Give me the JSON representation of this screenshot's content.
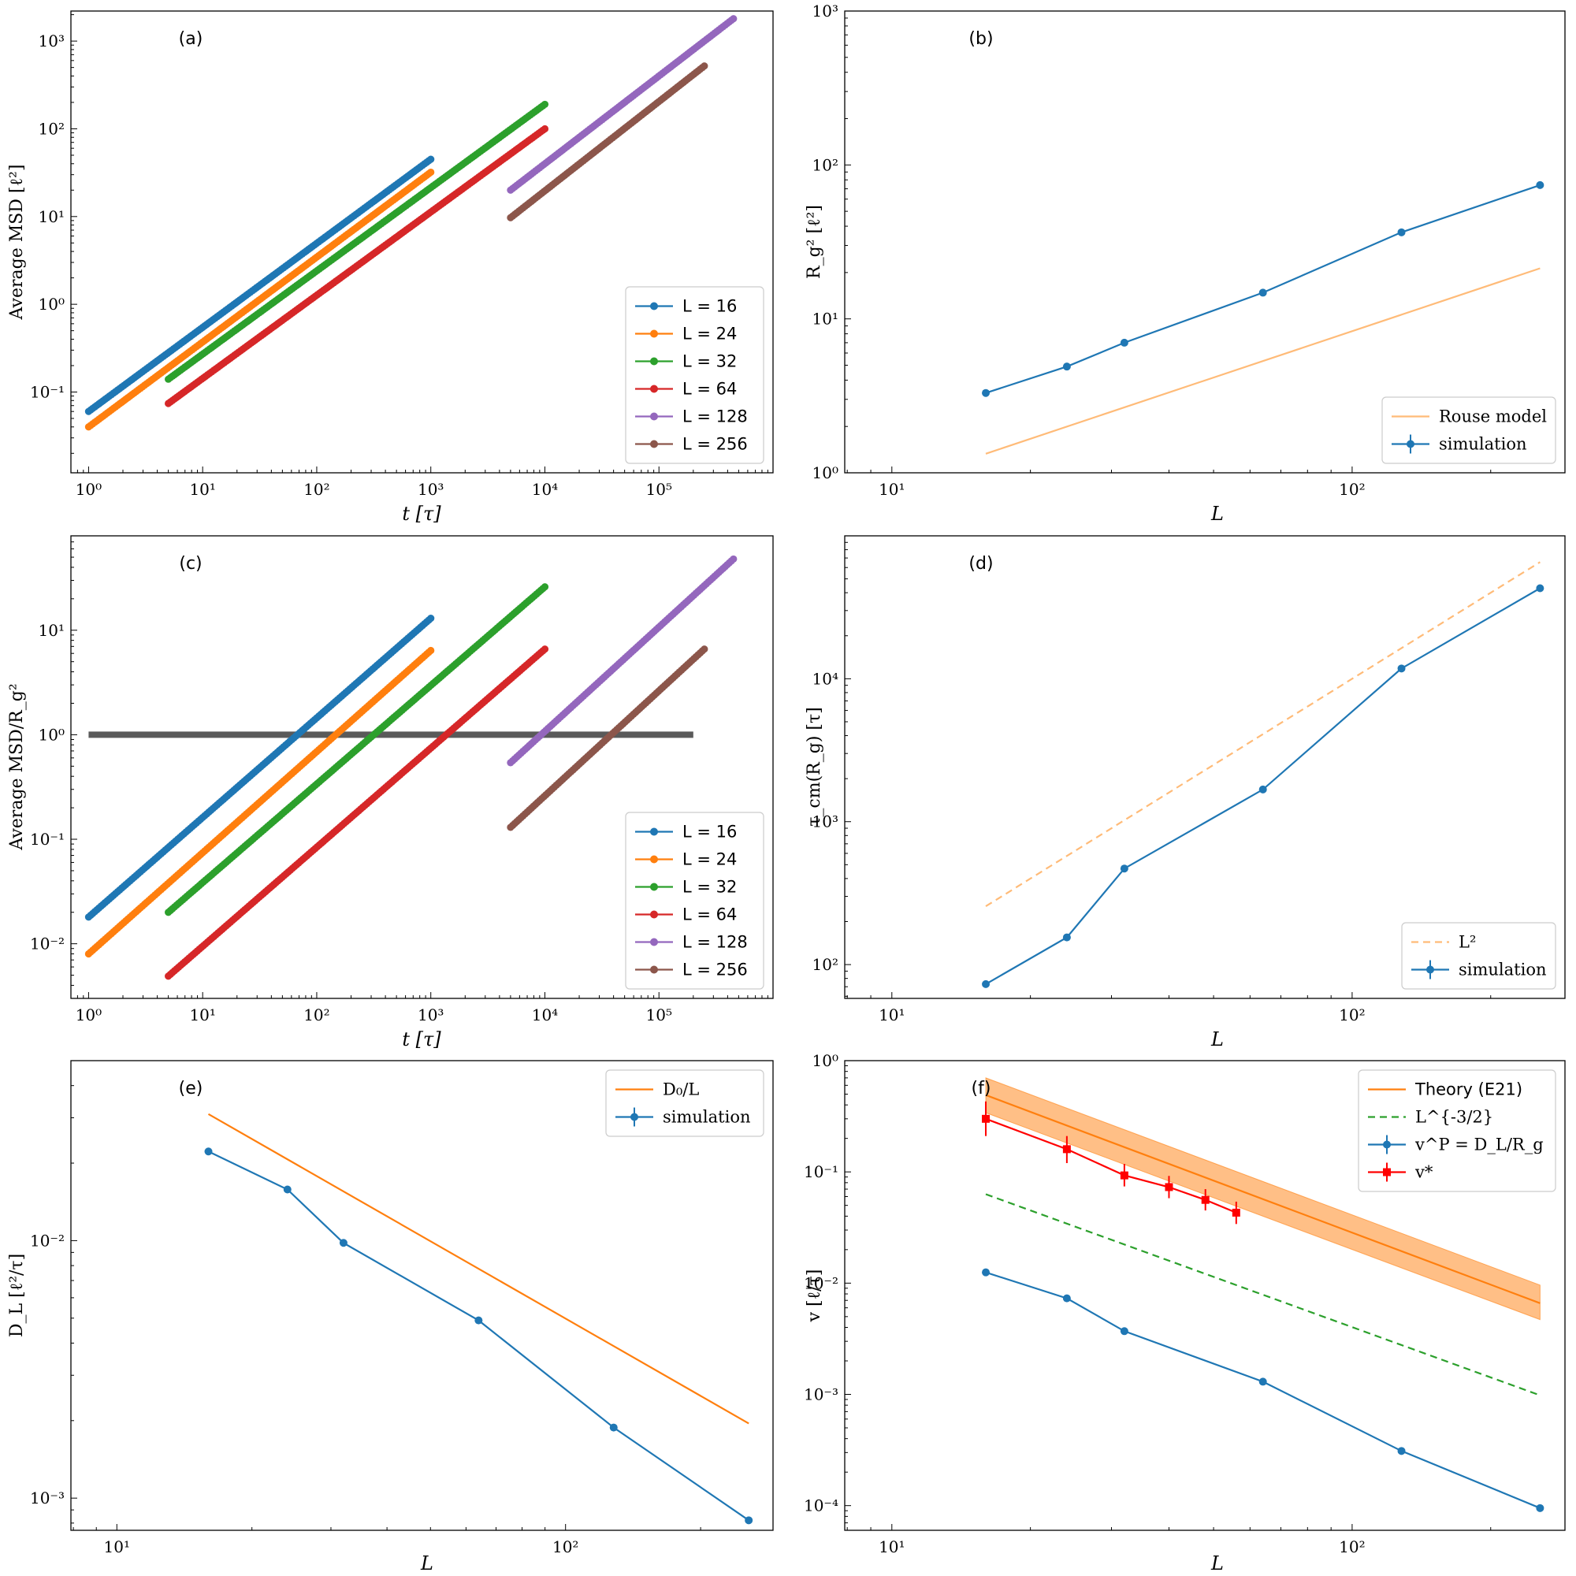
{
  "chart_data": [
    {
      "id": "a",
      "type": "line",
      "panel_label": "(a)",
      "xlabel": "t [τ]",
      "ylabel": "Average MSD [ℓ²]",
      "xscale": "log",
      "yscale": "log",
      "xlim": [
        0.7,
        1000000
      ],
      "ylim": [
        0.012,
        2200
      ],
      "xticks": [
        {
          "v": 1,
          "label": "10⁰"
        },
        {
          "v": 10,
          "label": "10¹"
        },
        {
          "v": 100,
          "label": "10²"
        },
        {
          "v": 1000,
          "label": "10³"
        },
        {
          "v": 10000,
          "label": "10⁴"
        },
        {
          "v": 100000,
          "label": "10⁵"
        }
      ],
      "yticks": [
        {
          "v": 0.1,
          "label": "10⁻¹"
        },
        {
          "v": 1,
          "label": "10⁰"
        },
        {
          "v": 10,
          "label": "10¹"
        },
        {
          "v": 100,
          "label": "10²"
        },
        {
          "v": 1000,
          "label": "10³"
        }
      ],
      "legend": {
        "position": "lower-right",
        "font": "sans"
      },
      "grid": false,
      "series": [
        {
          "name": "L = 16",
          "color": "#1f77b4",
          "style": "line-marker",
          "x": [
            1,
            1000
          ],
          "y": [
            0.06,
            45
          ]
        },
        {
          "name": "L = 24",
          "color": "#ff7f0e",
          "style": "line-marker",
          "x": [
            1,
            1000
          ],
          "y": [
            0.04,
            32
          ]
        },
        {
          "name": "L = 32",
          "color": "#2ca02c",
          "style": "line-marker",
          "x": [
            5,
            10000
          ],
          "y": [
            0.14,
            190
          ]
        },
        {
          "name": "L = 64",
          "color": "#d62728",
          "style": "line-marker",
          "x": [
            5,
            10000
          ],
          "y": [
            0.074,
            100
          ]
        },
        {
          "name": "L = 128",
          "color": "#9467bd",
          "style": "line-marker",
          "x": [
            5000,
            450000
          ],
          "y": [
            20,
            1800
          ]
        },
        {
          "name": "L = 256",
          "color": "#8c564b",
          "style": "line-marker",
          "x": [
            5000,
            250000
          ],
          "y": [
            9.7,
            520
          ]
        }
      ]
    },
    {
      "id": "b",
      "type": "line",
      "panel_label": "(b)",
      "xlabel": "L",
      "ylabel": "R_g²  [ℓ²]",
      "xscale": "log",
      "yscale": "log",
      "xlim": [
        7.9,
        290
      ],
      "ylim": [
        1,
        1000
      ],
      "xticks": [
        {
          "v": 10,
          "label": "10¹"
        },
        {
          "v": 100,
          "label": "10²"
        }
      ],
      "yticks": [
        {
          "v": 1,
          "label": "10⁰"
        },
        {
          "v": 10,
          "label": "10¹"
        },
        {
          "v": 100,
          "label": "10²"
        },
        {
          "v": 1000,
          "label": "10³"
        }
      ],
      "legend": {
        "position": "lower-right",
        "font": "serif"
      },
      "grid": false,
      "series": [
        {
          "name": "Rouse model",
          "color": "#ffbb78",
          "style": "line",
          "x": [
            16,
            256
          ],
          "y": [
            1.33,
            21.3
          ]
        },
        {
          "name": "simulation",
          "color": "#1f77b4",
          "style": "line-marker-err",
          "x": [
            16,
            24,
            32,
            64,
            128,
            256
          ],
          "y": [
            3.3,
            4.9,
            7.0,
            14.8,
            36.5,
            74
          ]
        }
      ]
    },
    {
      "id": "c",
      "type": "line",
      "panel_label": "(c)",
      "xlabel": "t [τ]",
      "ylabel": "Average MSD/R_g²",
      "xscale": "log",
      "yscale": "log",
      "xlim": [
        0.7,
        1000000
      ],
      "ylim": [
        0.003,
        80
      ],
      "xticks": [
        {
          "v": 1,
          "label": "10⁰"
        },
        {
          "v": 10,
          "label": "10¹"
        },
        {
          "v": 100,
          "label": "10²"
        },
        {
          "v": 1000,
          "label": "10³"
        },
        {
          "v": 10000,
          "label": "10⁴"
        },
        {
          "v": 100000,
          "label": "10⁵"
        }
      ],
      "yticks": [
        {
          "v": 0.01,
          "label": "10⁻²"
        },
        {
          "v": 0.1,
          "label": "10⁻¹"
        },
        {
          "v": 1,
          "label": "10⁰"
        },
        {
          "v": 10,
          "label": "10¹"
        }
      ],
      "legend": {
        "position": "lower-right",
        "font": "sans"
      },
      "grid": false,
      "hline": {
        "y": 1,
        "x": [
          1,
          200000
        ],
        "color": "#5a5a5a"
      },
      "series": [
        {
          "name": "L = 16",
          "color": "#1f77b4",
          "style": "line-marker",
          "x": [
            1,
            1000
          ],
          "y": [
            0.018,
            13
          ]
        },
        {
          "name": "L = 24",
          "color": "#ff7f0e",
          "style": "line-marker",
          "x": [
            1,
            1000
          ],
          "y": [
            0.008,
            6.4
          ]
        },
        {
          "name": "L = 32",
          "color": "#2ca02c",
          "style": "line-marker",
          "x": [
            5,
            10000
          ],
          "y": [
            0.02,
            26
          ]
        },
        {
          "name": "L = 64",
          "color": "#d62728",
          "style": "line-marker",
          "x": [
            5,
            10000
          ],
          "y": [
            0.0049,
            6.6
          ]
        },
        {
          "name": "L = 128",
          "color": "#9467bd",
          "style": "line-marker",
          "x": [
            5000,
            450000
          ],
          "y": [
            0.54,
            48
          ]
        },
        {
          "name": "L = 256",
          "color": "#8c564b",
          "style": "line-marker",
          "x": [
            5000,
            250000
          ],
          "y": [
            0.13,
            6.6
          ]
        }
      ]
    },
    {
      "id": "d",
      "type": "line",
      "panel_label": "(d)",
      "xlabel": "L",
      "ylabel": "τ_cm(R_g)  [τ]",
      "xscale": "log",
      "yscale": "log",
      "xlim": [
        7.9,
        290
      ],
      "ylim": [
        58,
        100000
      ],
      "xticks": [
        {
          "v": 10,
          "label": "10¹"
        },
        {
          "v": 100,
          "label": "10²"
        }
      ],
      "yticks": [
        {
          "v": 100,
          "label": "10²"
        },
        {
          "v": 1000,
          "label": "10³"
        },
        {
          "v": 10000,
          "label": "10⁴"
        }
      ],
      "legend": {
        "position": "lower-right",
        "font": "serif"
      },
      "grid": false,
      "series": [
        {
          "name": "L²",
          "color": "#ffbb78",
          "style": "dashed",
          "x": [
            16,
            256
          ],
          "y": [
            256,
            65536
          ]
        },
        {
          "name": "simulation",
          "color": "#1f77b4",
          "style": "line-marker-err",
          "x": [
            16,
            24,
            32,
            64,
            128,
            256
          ],
          "y": [
            73,
            155,
            470,
            1680,
            11800,
            43000
          ]
        }
      ]
    },
    {
      "id": "e",
      "type": "line",
      "panel_label": "(e)",
      "xlabel": "L",
      "ylabel": "D_L  [ℓ²/τ]",
      "xscale": "log",
      "yscale": "log",
      "xlim": [
        7.9,
        290
      ],
      "ylim": [
        0.00075,
        0.05
      ],
      "xticks": [
        {
          "v": 10,
          "label": "10¹"
        },
        {
          "v": 100,
          "label": "10²"
        }
      ],
      "yticks": [
        {
          "v": 0.001,
          "label": "10⁻³"
        },
        {
          "v": 0.01,
          "label": "10⁻²"
        }
      ],
      "legend": {
        "position": "top-right",
        "font": "serif"
      },
      "grid": false,
      "series": [
        {
          "name": "D₀/L",
          "color": "#ff7f0e",
          "style": "line",
          "x": [
            16,
            256
          ],
          "y": [
            0.031,
            0.00195
          ]
        },
        {
          "name": "simulation",
          "color": "#1f77b4",
          "style": "line-marker-err",
          "x": [
            16,
            24,
            32,
            64,
            128,
            256
          ],
          "y": [
            0.0222,
            0.0158,
            0.0098,
            0.0049,
            0.00188,
            0.00082
          ]
        }
      ]
    },
    {
      "id": "f",
      "type": "line",
      "panel_label": "(f)",
      "xlabel": "L",
      "ylabel": "v  [ℓ/τ]",
      "xscale": "log",
      "yscale": "log",
      "xlim": [
        7.9,
        290
      ],
      "ylim": [
        6e-05,
        1
      ],
      "xticks": [
        {
          "v": 10,
          "label": "10¹"
        },
        {
          "v": 100,
          "label": "10²"
        }
      ],
      "yticks": [
        {
          "v": 0.0001,
          "label": "10⁻⁴"
        },
        {
          "v": 0.001,
          "label": "10⁻³"
        },
        {
          "v": 0.01,
          "label": "10⁻²"
        },
        {
          "v": 0.1,
          "label": "10⁻¹"
        },
        {
          "v": 1,
          "label": "10⁰"
        }
      ],
      "legend": {
        "position": "top-right",
        "font": "mixed"
      },
      "grid": false,
      "band": {
        "color": "#ff7f0e",
        "x": [
          16,
          256
        ],
        "lower": [
          0.34,
          0.0047
        ],
        "upper": [
          0.7,
          0.0096
        ]
      },
      "series": [
        {
          "name": "Theory (E21)",
          "color": "#ff7f0e",
          "style": "line",
          "x": [
            16,
            256
          ],
          "y": [
            0.49,
            0.0066
          ]
        },
        {
          "name": "L^{-3/2}",
          "color": "#2ca02c",
          "style": "dashed",
          "x": [
            16,
            256
          ],
          "y": [
            0.063,
            0.00098
          ]
        },
        {
          "name": "v^P = D_L/R_g",
          "color": "#1f77b4",
          "style": "line-marker-err",
          "x": [
            16,
            24,
            32,
            64,
            128,
            256
          ],
          "y": [
            0.0125,
            0.0073,
            0.0037,
            0.0013,
            0.00031,
            9.5e-05
          ]
        },
        {
          "name": "v*",
          "color": "#ff0000",
          "style": "line-square-err",
          "x": [
            16,
            24,
            32,
            40,
            48,
            56
          ],
          "y": [
            0.3,
            0.16,
            0.093,
            0.073,
            0.056,
            0.043
          ],
          "yerr_lo": [
            0.21,
            0.12,
            0.074,
            0.058,
            0.045,
            0.034
          ],
          "yerr_hi": [
            0.43,
            0.21,
            0.118,
            0.092,
            0.07,
            0.054
          ]
        }
      ]
    }
  ]
}
